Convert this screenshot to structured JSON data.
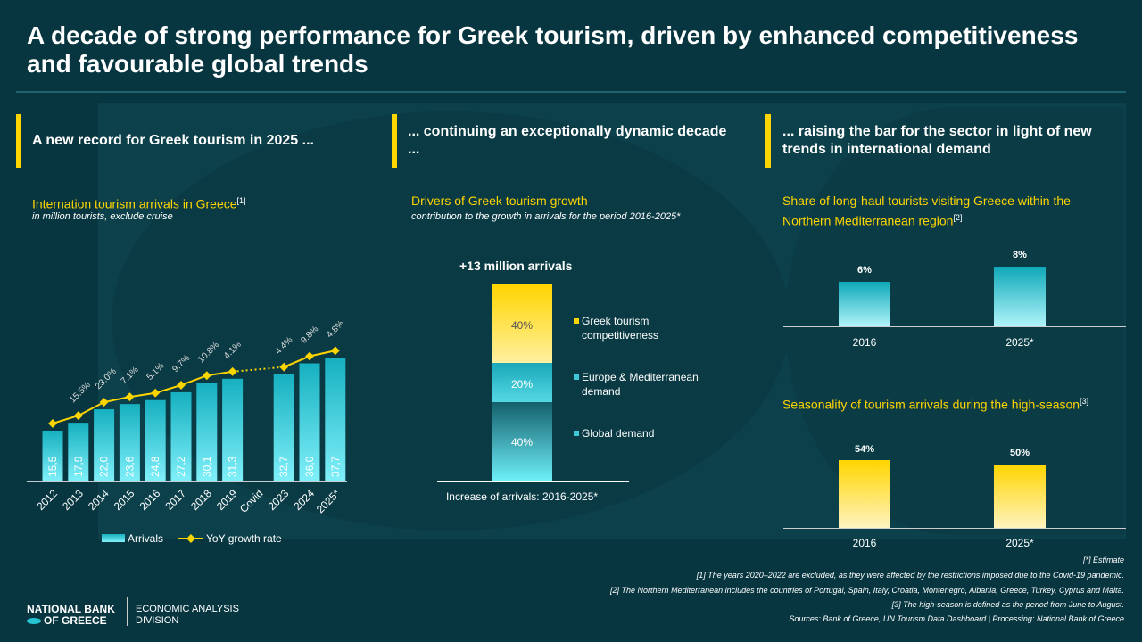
{
  "title": "A decade of strong performance for Greek tourism, driven by enhanced competitiveness and favourable global trends",
  "panels": {
    "left": {
      "header": "A new record for Greek tourism in 2025 ...",
      "chart_title": "Internation tourism arrivals in Greece",
      "chart_ref": "[1]",
      "chart_sub": "in million tourists, exclude cruise"
    },
    "middle": {
      "header": "... continuing an exceptionally dynamic decade ...",
      "chart_title": "Drivers of Greek tourism growth",
      "chart_sub": "contribution to the growth in arrivals for the period 2016-2025*"
    },
    "right": {
      "header": "... raising the bar for the sector in light of new trends in international demand",
      "chart1_title": "Share of long-haul tourists visiting Greece within the Northern Mediterranean region",
      "chart1_ref": "[2]",
      "chart2_title": "Seasonality of tourism arrivals during the high-season",
      "chart2_ref": "[3]"
    }
  },
  "chart_data": [
    {
      "type": "bar",
      "title": "Internation tourism arrivals in Greece",
      "categories": [
        "2012",
        "2013",
        "2014",
        "2015",
        "2016",
        "2017",
        "2018",
        "2019",
        "Covid",
        "2023",
        "2024",
        "2025*"
      ],
      "series": [
        {
          "name": "Arrivals",
          "values": [
            15.5,
            17.9,
            22.0,
            23.6,
            24.8,
            27.2,
            30.1,
            31.3,
            null,
            32.7,
            36.0,
            37.7
          ],
          "labels": [
            "15,5",
            "17,9",
            "22,0",
            "23,6",
            "24,8",
            "27,2",
            "30,1",
            "31,3",
            "",
            "32,7",
            "36,0",
            "37,7"
          ]
        },
        {
          "name": "YoY growth rate",
          "type": "line",
          "values": [
            null,
            15.5,
            23.0,
            7.1,
            5.1,
            9.7,
            10.8,
            4.1,
            null,
            4.4,
            9.8,
            4.8
          ],
          "labels": [
            "",
            "15.5%",
            "23.0%",
            "7.1%",
            "5.1%",
            "9.7%",
            "10.8%",
            "4.1%",
            "",
            "4.4%",
            "9.8%",
            "4.8%"
          ]
        }
      ]
    },
    {
      "type": "bar",
      "stacked": true,
      "title": "+13 million arrivals",
      "xlabel": "Increase of arrivals: 2016-2025*",
      "segments": [
        {
          "name": "Global demand",
          "value": 40,
          "label": "40%"
        },
        {
          "name": "Europe & Mediterranean demand",
          "value": 20,
          "label": "20%"
        },
        {
          "name": "Greek tourism competitiveness",
          "value": 40,
          "label": "40%"
        }
      ]
    },
    {
      "type": "bar",
      "title": "Share of long-haul tourists",
      "categories": [
        "2016",
        "2025*"
      ],
      "values": [
        6,
        8
      ],
      "labels": [
        "6%",
        "8%"
      ]
    },
    {
      "type": "bar",
      "title": "Seasonality high-season",
      "categories": [
        "2016",
        "2025*"
      ],
      "values": [
        54,
        50
      ],
      "labels": [
        "54%",
        "50%"
      ]
    }
  ],
  "legend_mid": [
    "Greek tourism competitiveness",
    "Europe & Mediterranean demand",
    "Global demand"
  ],
  "footnotes": [
    "[*] Estimate",
    "[1] The years 2020–2022 are excluded, as they were affected by the restrictions imposed due to the Covid-19 pandemic.",
    "[2] The Northern Mediterranean includes the countries of Portugal, Spain, Italy, Croatia, Montenegro, Albania, Greece, Turkey, Cyprus and Malta.",
    "[3] The high-season is defined as the period from June to August.",
    "Sources: Bank of Greece, UN Tourism Data Dashboard | Processing: National Bank of Greece"
  ],
  "logo": {
    "line1": "NATIONAL BANK",
    "line2": "OF GREECE",
    "division1": "ECONOMIC ANALYSIS",
    "division2": "DIVISION"
  },
  "colors": {
    "accent": "#ffd500",
    "bar": "#16b0c0",
    "background": "#073640"
  }
}
